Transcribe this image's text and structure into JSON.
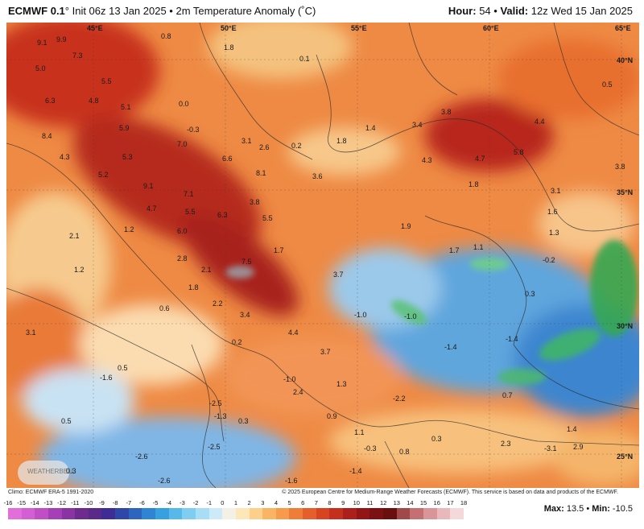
{
  "header": {
    "model": "ECMWF 0.1",
    "init": "° Init 06z 13 Jan 2025 • 2m Temperature Anomaly (˚C)",
    "hour_label": "Hour:",
    "hour": "54",
    "valid_label": "Valid:",
    "valid": "12z Wed 15 Jan 2025"
  },
  "credits": {
    "left": "Climo: ECMWF ERA-5 1991-2020",
    "right": "© 2025 European Centre for Medium-Range Weather Forecasts (ECMWF). This service is based on data and products of the ECMWF."
  },
  "stats": {
    "max_label": "Max:",
    "max": "13.5",
    "min_label": "Min:",
    "min": "-10.5"
  },
  "logo_text": "WEATHERBELL",
  "colorbar": {
    "ticks": [
      "-16",
      "-15",
      "-14",
      "-13",
      "-12",
      "-11",
      "-10",
      "-9",
      "-8",
      "-7",
      "-6",
      "-5",
      "-4",
      "-3",
      "-2",
      "-1",
      "0",
      "1",
      "2",
      "3",
      "4",
      "5",
      "6",
      "7",
      "8",
      "9",
      "10",
      "11",
      "12",
      "13",
      "14",
      "15",
      "16",
      "17",
      "18"
    ],
    "colors": [
      "#e26fd9",
      "#d45ed3",
      "#c04fc6",
      "#a43fb7",
      "#8a34a4",
      "#6d2b8e",
      "#5a2a8a",
      "#3d2d94",
      "#2f47a8",
      "#2d64be",
      "#2f84d4",
      "#37a1e0",
      "#56b9ea",
      "#7fcdf0",
      "#a9ddf5",
      "#cdeaf8",
      "#f3f1e6",
      "#fde7b8",
      "#fcd08a",
      "#f9b564",
      "#f59b4b",
      "#ef7d3a",
      "#e55e2c",
      "#d84322",
      "#c52f1d",
      "#ad1f1a",
      "#931516",
      "#7c1013",
      "#6b0e10",
      "#a0484a",
      "#c46f72",
      "#d99598",
      "#e9b8ba",
      "#f4d9da"
    ]
  },
  "geo_labels": [
    {
      "text": "45°E"
    },
    {
      "text": "50°E"
    },
    {
      "text": "55°E"
    },
    {
      "text": "60°E"
    },
    {
      "text": "65°E"
    },
    {
      "text": "40°N"
    },
    {
      "text": "35°N"
    },
    {
      "text": "30°N"
    },
    {
      "text": "25°N"
    }
  ],
  "values": [
    {
      "text": "9.1"
    },
    {
      "text": "9.9"
    },
    {
      "text": "7.3"
    },
    {
      "text": "0.8"
    },
    {
      "text": "1.8"
    },
    {
      "text": "5.0"
    },
    {
      "text": "5.5"
    },
    {
      "text": "6.3"
    },
    {
      "text": "4.8"
    },
    {
      "text": "5.1"
    },
    {
      "text": "0.0"
    },
    {
      "text": "0.1"
    },
    {
      "text": "3.8"
    },
    {
      "text": "0.5"
    },
    {
      "text": "4.4"
    },
    {
      "text": "3.4"
    },
    {
      "text": "1.4"
    },
    {
      "text": "5.9"
    },
    {
      "text": "-0.3"
    },
    {
      "text": "8.4"
    },
    {
      "text": "7.0"
    },
    {
      "text": "3.1"
    },
    {
      "text": "2.6"
    },
    {
      "text": "0.2"
    },
    {
      "text": "1.8"
    },
    {
      "text": "5.8"
    },
    {
      "text": "4.3"
    },
    {
      "text": "5.3"
    },
    {
      "text": "6.6"
    },
    {
      "text": "8.1"
    },
    {
      "text": "3.6"
    },
    {
      "text": "4.3"
    },
    {
      "text": "4.7"
    },
    {
      "text": "3.8"
    },
    {
      "text": "5.2"
    },
    {
      "text": "9.1"
    },
    {
      "text": "7.1"
    },
    {
      "text": "1.8"
    },
    {
      "text": "3.1"
    },
    {
      "text": "3.8"
    },
    {
      "text": "4.7"
    },
    {
      "text": "5.5"
    },
    {
      "text": "6.3"
    },
    {
      "text": "5.5"
    },
    {
      "text": "1.7"
    },
    {
      "text": "1.6"
    },
    {
      "text": "1.2"
    },
    {
      "text": "6.0"
    },
    {
      "text": "1.9"
    },
    {
      "text": "1.3"
    },
    {
      "text": "2.1"
    },
    {
      "text": "2.8"
    },
    {
      "text": "1.7"
    },
    {
      "text": "1.1"
    },
    {
      "text": "-0.2"
    },
    {
      "text": "1.2"
    },
    {
      "text": "2.1"
    },
    {
      "text": "7.5"
    },
    {
      "text": "3.7"
    },
    {
      "text": "1.8"
    },
    {
      "text": "2.2"
    },
    {
      "text": "0.3"
    },
    {
      "text": "0.6"
    },
    {
      "text": "3.4"
    },
    {
      "text": "-1.0"
    },
    {
      "text": "-1.0"
    },
    {
      "text": "3.1"
    },
    {
      "text": "4.4"
    },
    {
      "text": "-1.4"
    },
    {
      "text": "0.2"
    },
    {
      "text": "3.7"
    },
    {
      "text": "-1.4"
    },
    {
      "text": "0.5"
    },
    {
      "text": "-1.6"
    },
    {
      "text": "-1.0"
    },
    {
      "text": "1.3"
    },
    {
      "text": "0.7"
    },
    {
      "text": "2.4"
    },
    {
      "text": "-2.2"
    },
    {
      "text": "-2.5"
    },
    {
      "text": "0.5"
    },
    {
      "text": "-1.3"
    },
    {
      "text": "0.3"
    },
    {
      "text": "0.9"
    },
    {
      "text": "1.4"
    },
    {
      "text": "1.1"
    },
    {
      "text": "-2.5"
    },
    {
      "text": "-0.3"
    },
    {
      "text": "0.3"
    },
    {
      "text": "0.8"
    },
    {
      "text": "-2.6"
    },
    {
      "text": "2.3"
    },
    {
      "text": "-3.1"
    },
    {
      "text": "2.9"
    },
    {
      "text": "0.3"
    },
    {
      "text": "-1.4"
    },
    {
      "text": "-2.6"
    },
    {
      "text": "-1.6"
    }
  ]
}
